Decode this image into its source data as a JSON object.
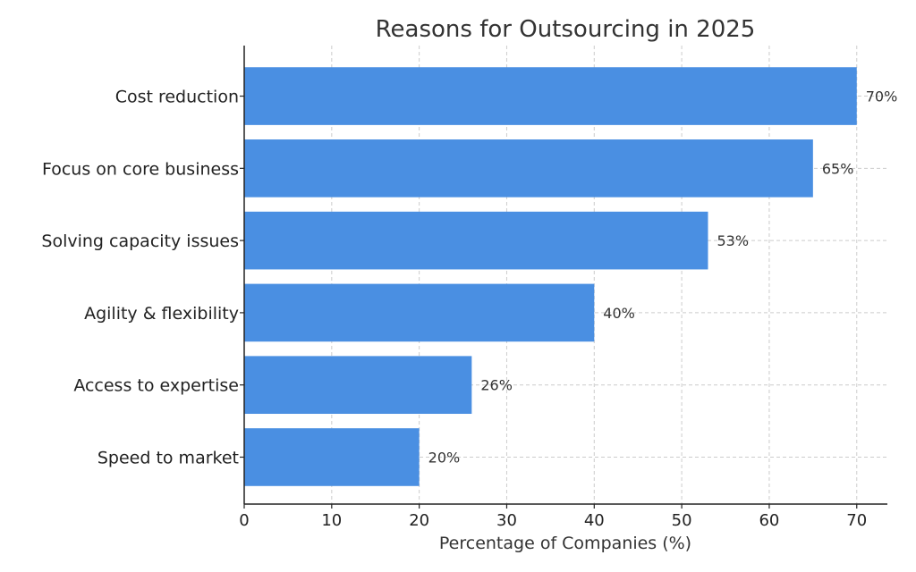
{
  "chart_data": {
    "type": "bar",
    "orientation": "horizontal",
    "title": "Reasons for Outsourcing in 2025",
    "xlabel": "Percentage of Companies (%)",
    "ylabel": "",
    "categories": [
      "Cost reduction",
      "Focus on core business",
      "Solving capacity issues",
      "Agility & flexibility",
      "Access to expertise",
      "Speed to market"
    ],
    "values": [
      70,
      65,
      53,
      40,
      26,
      20
    ],
    "value_labels": [
      "70%",
      "65%",
      "53%",
      "40%",
      "26%",
      "20%"
    ],
    "xlim": [
      0,
      73.5
    ],
    "xticks": [
      "0",
      "10",
      "20",
      "30",
      "40",
      "50",
      "60",
      "70"
    ],
    "grid": true,
    "bar_color": "#4a8fe2",
    "grid_color": "#cccccc"
  }
}
